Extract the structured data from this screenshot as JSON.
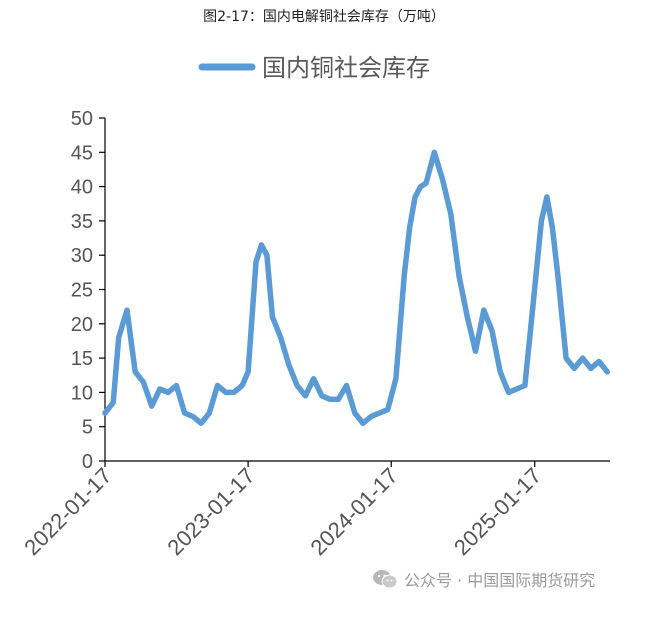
{
  "figure_title": "图2-17：国内电解铜社会库存（万吨）",
  "watermark": {
    "icon": "wechat-icon",
    "text": "公众号 · 中国国际期货研究"
  },
  "colors": {
    "series": "#5B9BD5",
    "axis": "#000000",
    "text": "#555555"
  },
  "chart_data": {
    "type": "line",
    "title": "",
    "xlabel": "",
    "ylabel": "",
    "legend": "top",
    "grid": false,
    "ylim": [
      0,
      50
    ],
    "y_ticks": [
      0,
      5,
      10,
      15,
      20,
      25,
      30,
      35,
      40,
      45,
      50
    ],
    "xlim": [
      "2022-01-17",
      "2025-07-28"
    ],
    "x_ticks": [
      "2022-01-17",
      "2023-01-17",
      "2024-01-17",
      "2025-01-17"
    ],
    "series": [
      {
        "name": "国内铜社会库存",
        "x": [
          "2022-01-17",
          "2022-02-07",
          "2022-02-21",
          "2022-03-14",
          "2022-04-04",
          "2022-04-25",
          "2022-05-16",
          "2022-06-06",
          "2022-06-27",
          "2022-07-18",
          "2022-08-08",
          "2022-08-29",
          "2022-09-19",
          "2022-10-10",
          "2022-10-31",
          "2022-11-21",
          "2022-12-12",
          "2023-01-02",
          "2023-01-17",
          "2023-02-06",
          "2023-02-20",
          "2023-03-06",
          "2023-03-20",
          "2023-04-10",
          "2023-05-01",
          "2023-05-22",
          "2023-06-12",
          "2023-07-03",
          "2023-07-24",
          "2023-08-14",
          "2023-09-04",
          "2023-09-25",
          "2023-10-16",
          "2023-11-06",
          "2023-11-27",
          "2023-12-18",
          "2024-01-08",
          "2024-01-29",
          "2024-02-19",
          "2024-03-04",
          "2024-03-18",
          "2024-04-01",
          "2024-04-15",
          "2024-05-06",
          "2024-05-27",
          "2024-06-17",
          "2024-07-08",
          "2024-07-29",
          "2024-08-19",
          "2024-09-09",
          "2024-09-30",
          "2024-10-21",
          "2024-11-11",
          "2024-12-02",
          "2024-12-23",
          "2025-01-13",
          "2025-02-03",
          "2025-02-17",
          "2025-03-03",
          "2025-03-17",
          "2025-04-07",
          "2025-04-28",
          "2025-05-19",
          "2025-06-09",
          "2025-06-30",
          "2025-07-21"
        ],
        "values": [
          7,
          8.5,
          18,
          22,
          13,
          11.5,
          8,
          10.5,
          10,
          11,
          7,
          6.5,
          5.5,
          7,
          11,
          10,
          10,
          11,
          13,
          29,
          31.5,
          30,
          21,
          18,
          14,
          11,
          9.5,
          12,
          9.5,
          9,
          9,
          11,
          7,
          5.5,
          6.5,
          7,
          7.5,
          12,
          27,
          34,
          38.5,
          40,
          40.5,
          45,
          41,
          36,
          27,
          21,
          16,
          22,
          19,
          13,
          10,
          10.5,
          11,
          23,
          35,
          38.5,
          34,
          27,
          15,
          13.5,
          15,
          13.5,
          14.5,
          13
        ]
      }
    ]
  }
}
